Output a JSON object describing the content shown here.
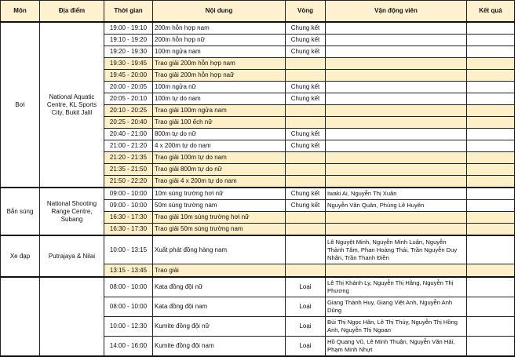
{
  "headers": {
    "sport": "Môn",
    "venue": "Địa điểm",
    "time": "Thời gian",
    "event": "Nội dung",
    "round": "Vòng",
    "athletes": "Vận động viên",
    "result": "Kết quả"
  },
  "colors": {
    "header_bg": "#fdf1cf",
    "award_bg": "#fdf0c8",
    "border": "#222222"
  },
  "groups": [
    {
      "sport": "Bơi",
      "venue": "National Aquatic Centre, KL Sports City, Bukit Jalil",
      "rows": [
        {
          "time": "19:00 - 19:10",
          "event": "200m hỗn hợp nam",
          "round": "Chung kết",
          "athletes": "",
          "result": "",
          "award": false
        },
        {
          "time": "19:10 - 19:20",
          "event": "200m hỗn hợp nữ",
          "round": "Chung kết",
          "athletes": "",
          "result": "",
          "award": false
        },
        {
          "time": "19:20 - 19:30",
          "event": "100m ngửa nam",
          "round": "Chung kết",
          "athletes": "",
          "result": "",
          "award": false
        },
        {
          "time": "19:30 - 19:45",
          "event": "Trao giải 200m hỗn hợp nam",
          "round": "",
          "athletes": "",
          "result": "",
          "award": true
        },
        {
          "time": "19:45 - 20:00",
          "event": "Trao giải 200m hỗn hợp naữ",
          "round": "",
          "athletes": "",
          "result": "",
          "award": true
        },
        {
          "time": "20:00 - 20:05",
          "event": "100m ngửa nữ",
          "round": "Chung kết",
          "athletes": "",
          "result": "",
          "award": false
        },
        {
          "time": "20:05 - 20:10",
          "event": "100m tự do nam",
          "round": "Chung kết",
          "athletes": "",
          "result": "",
          "award": false
        },
        {
          "time": "20:10 - 20:25",
          "event": "Trao giải 100m ngửa nam",
          "round": "",
          "athletes": "",
          "result": "",
          "award": true
        },
        {
          "time": "20:25 - 20:40",
          "event": "Trao giải 100 ếch nữ",
          "round": "",
          "athletes": "",
          "result": "",
          "award": true
        },
        {
          "time": "20:40 - 21:00",
          "event": "800m tự do nữ",
          "round": "Chung kết",
          "athletes": "",
          "result": "",
          "award": false
        },
        {
          "time": "21:00 - 21:20",
          "event": "4 x 200m tự do nam",
          "round": "Chung kết",
          "athletes": "",
          "result": "",
          "award": false
        },
        {
          "time": "21:20 - 21:35",
          "event": "Trao giải 100m tự do nam",
          "round": "",
          "athletes": "",
          "result": "",
          "award": true
        },
        {
          "time": "21:35 - 21:50",
          "event": "Trao giải 800m tự do nữ",
          "round": "",
          "athletes": "",
          "result": "",
          "award": true
        },
        {
          "time": "21:50 - 22:20",
          "event": "Trao giải 4 x 200m tự do nam",
          "round": "",
          "athletes": "",
          "result": "",
          "award": true
        }
      ]
    },
    {
      "sport": "Bắn súng",
      "venue": "National Shooting Range Centre, Subang",
      "rows": [
        {
          "time": "09:00 - 10:00",
          "event": "10m súng trường hơi nữ",
          "round": "Chung kết",
          "athletes": "Iwaki Ai, Nguyễn Thị Xuân",
          "result": "",
          "award": false
        },
        {
          "time": "09:00 - 10:00",
          "event": "50m súng trường nam",
          "round": "Chung kết",
          "athletes": "Nguyễn Văn Quân, Phùng Lê Huyên",
          "result": "",
          "award": false
        },
        {
          "time": "16:30 - 17:30",
          "event": "Trao giải 10m súng trường hơi nữ",
          "round": "",
          "athletes": "",
          "result": "",
          "award": true
        },
        {
          "time": "16:30 - 17:30",
          "event": "Trao giải 50m súng trường nam",
          "round": "",
          "athletes": "",
          "result": "",
          "award": true
        }
      ]
    },
    {
      "sport": "Xe đạp",
      "venue": "Putrajaya & Nilai",
      "rows": [
        {
          "time": "10:00 - 13:15",
          "event": "Xuất phát đồng hàng nam",
          "round": "",
          "athletes": "Lê Nguyệt Minh, Nguyễn Minh Luận, Nguyễn Thành Tâm, Phan Hoàng Thái, Trần Nguyễn Duy Nhân, Trần Thanh Điền",
          "result": "",
          "award": false
        },
        {
          "time": "13:15 - 13:45",
          "event": "Trao giải",
          "round": "",
          "athletes": "",
          "result": "",
          "award": true
        }
      ]
    },
    {
      "sport": "",
      "venue": "",
      "rows": [
        {
          "time": "08:00 - 10:00",
          "event": "Kata đồng đội nữ",
          "round": "Loại",
          "athletes": "Lê Thị Khánh Ly, Nguyễn Thị Hằng, Nguyễn Thị Phương",
          "result": "",
          "award": false
        },
        {
          "time": "08:00 - 10:00",
          "event": "Kata đồng đội nam",
          "round": "Loại",
          "athletes": "Giang Thành Huy, Giang Việt Anh, Nguyễn Anh Dũng",
          "result": "",
          "award": false
        },
        {
          "time": "10:00 - 12:30",
          "event": "Kumite đồng đội nữ",
          "round": "Loại",
          "athletes": "Bùi Thị Ngọc Hân, Lê Thị Thùy, Nguyễn Thị Hồng Anh, Nguyễn Thị Ngoan",
          "result": "",
          "award": false
        },
        {
          "time": "14:00 - 16:00",
          "event": "Kumite đồng đội nam",
          "round": "Loại",
          "athletes": "Hồ Quang Vũ, Lê Minh Thuận, Nguyễn Văn Hải, Phạm Minh Nhựt",
          "result": "",
          "award": false
        }
      ]
    }
  ]
}
